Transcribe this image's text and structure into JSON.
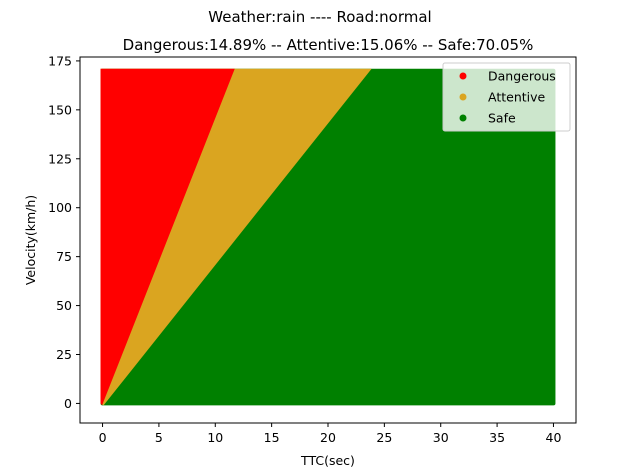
{
  "chart_data": {
    "type": "scatter",
    "suptitle": "Weather:rain ---- Road:normal",
    "title": "Dangerous:14.89% -- Attentive:15.06% -- Safe:70.05%",
    "xlabel": "TTC(sec)",
    "ylabel": "Velocity(km/h)",
    "xlim": [
      -2,
      42
    ],
    "ylim": [
      -10,
      177
    ],
    "xticks": [
      0,
      5,
      10,
      15,
      20,
      25,
      30,
      35,
      40
    ],
    "yticks": [
      0,
      25,
      50,
      75,
      100,
      125,
      150,
      175
    ],
    "x_range": [
      0,
      40
    ],
    "y_range": [
      0,
      170
    ],
    "series": [
      {
        "name": "Dangerous",
        "color": "#ff0000",
        "region": "TTC < Velocity / 14.6",
        "boundary_points": [
          [
            0,
            0
          ],
          [
            11.64,
            170
          ]
        ]
      },
      {
        "name": "Attentive",
        "color": "#daa520",
        "region": "Velocity / 14.6 <= TTC < Velocity / 7.15",
        "boundary_points": [
          [
            0,
            0
          ],
          [
            23.78,
            170
          ]
        ]
      },
      {
        "name": "Safe",
        "color": "#008000",
        "region": "TTC >= Velocity / 7.15"
      }
    ],
    "legend": {
      "placement": "top-right",
      "entries": [
        "Dangerous",
        "Attentive",
        "Safe"
      ]
    },
    "grid": false
  }
}
